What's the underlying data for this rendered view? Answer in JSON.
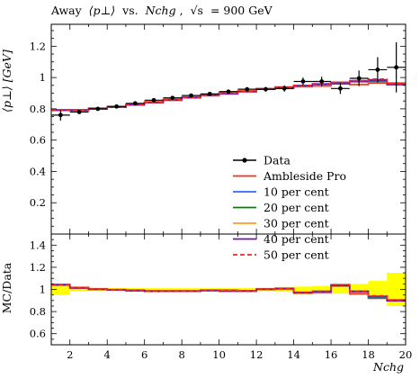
{
  "chart_data": {
    "type": "line",
    "title": "Away ⟨p⊥⟩ vs. Nchg, √s = 900 GeV",
    "title_parts": {
      "away": "Away",
      "pt_symbol": "⟨p⊥⟩",
      "vs": "vs.",
      "nchg_symbol": "Nchg",
      "sqrt_s": "√s",
      "energy": "= 900 GeV"
    },
    "xlabel": "Nchg",
    "ylabel_main": "⟨p⊥⟩ [GeV]",
    "ylabel_ratio": "MC/Data",
    "xlim": [
      1,
      20
    ],
    "ylim_main": [
      0,
      1.34
    ],
    "ylim_ratio": [
      0.5,
      1.5
    ],
    "x_ticks": [
      2,
      4,
      6,
      8,
      10,
      12,
      14,
      16,
      18,
      20
    ],
    "y_ticks_main": [
      0.2,
      0.4,
      0.6,
      0.8,
      1,
      1.2
    ],
    "y_ticks_ratio": [
      0.6,
      0.8,
      1,
      1.2,
      1.4
    ],
    "bin_edges": [
      1,
      2,
      3,
      4,
      5,
      6,
      7,
      8,
      9,
      10,
      11,
      12,
      13,
      14,
      15,
      16,
      17,
      18,
      19,
      20
    ],
    "data": {
      "name": "Data",
      "x": [
        1.5,
        2.5,
        3.5,
        4.5,
        5.5,
        6.5,
        7.5,
        8.5,
        9.5,
        10.5,
        11.5,
        12.5,
        13.5,
        14.5,
        15.5,
        16.5,
        17.5,
        18.5,
        19.5
      ],
      "y": [
        0.76,
        0.78,
        0.8,
        0.815,
        0.835,
        0.855,
        0.87,
        0.885,
        0.895,
        0.91,
        0.925,
        0.925,
        0.93,
        0.975,
        0.975,
        0.93,
        0.995,
        1.05,
        1.065
      ],
      "yerr": [
        0.035,
        0.01,
        0.01,
        0.01,
        0.01,
        0.01,
        0.01,
        0.01,
        0.01,
        0.01,
        0.012,
        0.015,
        0.02,
        0.025,
        0.03,
        0.035,
        0.05,
        0.08,
        0.16
      ]
    },
    "series": [
      {
        "name": "Ambleside Pro",
        "color": "#ee3311",
        "style": "solid",
        "values": [
          0.795,
          0.795,
          0.805,
          0.815,
          0.83,
          0.845,
          0.86,
          0.875,
          0.89,
          0.905,
          0.915,
          0.93,
          0.94,
          0.95,
          0.945,
          0.965,
          0.955,
          0.965,
          0.965
        ]
      },
      {
        "name": "10 per cent",
        "color": "#3366ff",
        "style": "solid",
        "values": [
          0.79,
          0.79,
          0.8,
          0.81,
          0.825,
          0.84,
          0.855,
          0.87,
          0.885,
          0.9,
          0.91,
          0.925,
          0.935,
          0.95,
          0.96,
          0.97,
          0.98,
          0.975,
          0.955
        ]
      },
      {
        "name": "20 per cent",
        "color": "#117711",
        "style": "solid",
        "values": [
          0.79,
          0.79,
          0.8,
          0.81,
          0.825,
          0.84,
          0.855,
          0.87,
          0.885,
          0.9,
          0.91,
          0.925,
          0.935,
          0.945,
          0.955,
          0.965,
          0.975,
          0.98,
          0.955
        ]
      },
      {
        "name": "30 per cent",
        "color": "#ff9922",
        "style": "solid",
        "values": [
          0.79,
          0.79,
          0.8,
          0.81,
          0.825,
          0.84,
          0.855,
          0.87,
          0.885,
          0.9,
          0.91,
          0.925,
          0.93,
          0.94,
          0.95,
          0.96,
          0.97,
          0.985,
          0.955
        ]
      },
      {
        "name": "40 per cent",
        "color": "#7711aa",
        "style": "solid",
        "values": [
          0.79,
          0.79,
          0.8,
          0.81,
          0.825,
          0.84,
          0.855,
          0.87,
          0.885,
          0.895,
          0.91,
          0.925,
          0.935,
          0.945,
          0.955,
          0.96,
          0.975,
          0.985,
          0.955
        ]
      },
      {
        "name": "50 per cent",
        "color": "#ff2222",
        "style": "dashed",
        "values": [
          0.79,
          0.79,
          0.8,
          0.81,
          0.825,
          0.84,
          0.855,
          0.87,
          0.885,
          0.9,
          0.91,
          0.925,
          0.935,
          0.95,
          0.96,
          0.97,
          0.98,
          0.99,
          0.96
        ]
      }
    ],
    "legend_placement": "lower-right"
  }
}
